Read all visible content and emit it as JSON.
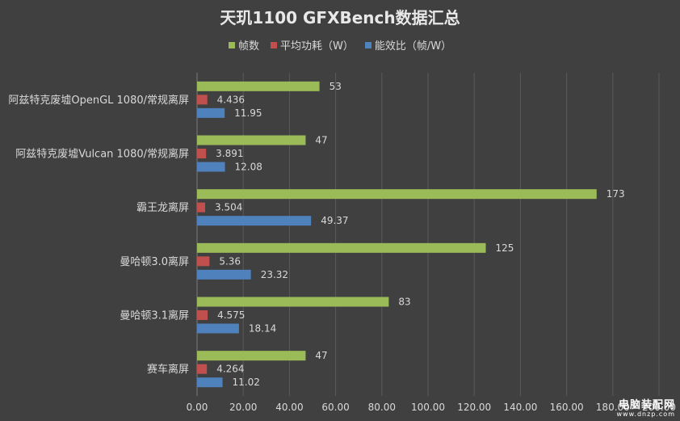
{
  "chart_data": {
    "type": "bar",
    "orientation": "horizontal",
    "title": "天玑1100 GFXBench数据汇总",
    "categories": [
      "阿兹特克废墟OpenGL 1080/常规离屏",
      "阿兹特克废墟Vulcan 1080/常规离屏",
      "霸王龙离屏",
      "曼哈顿3.0离屏",
      "曼哈顿3.1离屏",
      "赛车离屏"
    ],
    "series": [
      {
        "name": "帧数",
        "color": "#9bbb59",
        "values": [
          53,
          47,
          173,
          125,
          83,
          47
        ],
        "labels": [
          "53",
          "47",
          "173",
          "125",
          "83",
          "47"
        ]
      },
      {
        "name": "平均功耗（W）",
        "color": "#c0504d",
        "values": [
          4.436,
          3.891,
          3.504,
          5.36,
          4.575,
          4.264
        ],
        "labels": [
          "4.436",
          "3.891",
          "3.504",
          "5.36",
          "4.575",
          "4.264"
        ]
      },
      {
        "name": "能效比（帧/W）",
        "color": "#4f81bd",
        "values": [
          11.95,
          12.08,
          49.37,
          23.32,
          18.14,
          11.02
        ],
        "labels": [
          "11.95",
          "12.08",
          "49.37",
          "23.32",
          "18.14",
          "11.02"
        ]
      }
    ],
    "xlim": [
      0,
      200
    ],
    "xticks": [
      "0.00",
      "20.00",
      "40.00",
      "60.00",
      "80.00",
      "100.00",
      "120.00",
      "140.00",
      "160.00",
      "180.00",
      "200.00"
    ],
    "grid": true,
    "legend_position": "top"
  },
  "watermark": {
    "main": "电脑装配网",
    "sub": "www.dnzp.com"
  }
}
